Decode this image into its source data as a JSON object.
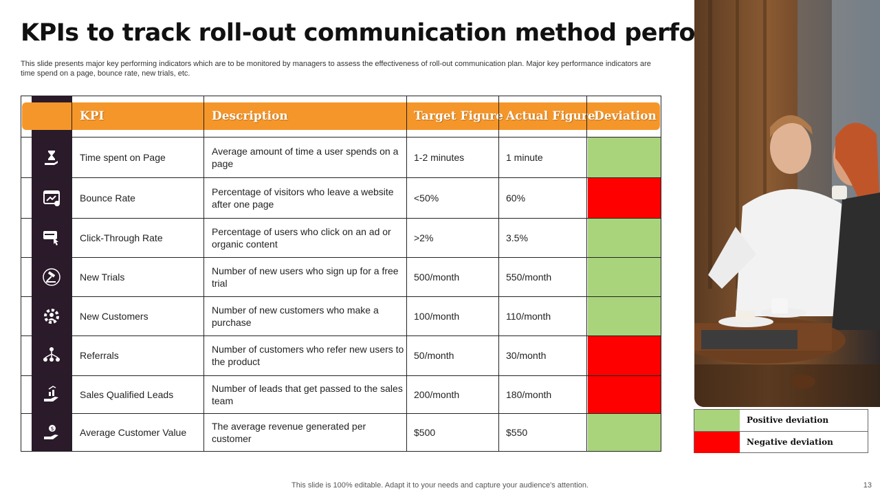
{
  "title": "KPIs to track roll-out communication method performance",
  "subtitle": "This slide presents major key performing indicators which are to be monitored by managers to assess the effectiveness of roll-out communication plan. Major key performance indicators are time spend on a page, bounce rate, new trials, etc.",
  "table": {
    "headers": {
      "kpi": "KPI",
      "description": "Description",
      "target": "Target Figure",
      "actual": "Actual Figure",
      "deviation": "Deviation"
    },
    "rows": [
      {
        "kpi": "Time spent on Page",
        "description": "Average  amount of time a user spends on a page",
        "target": "1-2 minutes",
        "actual": "1 minute",
        "deviation": "positive",
        "icon": "hourglass-hand-icon"
      },
      {
        "kpi": "Bounce Rate",
        "description": "Percentage of visitors who leave a website after one page",
        "target": "<50%",
        "actual": "60%",
        "deviation": "negative",
        "icon": "browser-chart-icon"
      },
      {
        "kpi": "Click-Through Rate",
        "description": "Percentage of users who click on an ad or organic content",
        "target": ">2%",
        "actual": "3.5%",
        "deviation": "positive",
        "icon": "click-card-icon"
      },
      {
        "kpi": "New Trials",
        "description": "Number of new users who sign up for a free trial",
        "target": "500/month",
        "actual": "550/month",
        "deviation": "positive",
        "icon": "gavel-icon"
      },
      {
        "kpi": "New Customers",
        "description": "Number of new customers who make a purchase",
        "target": "100/month",
        "actual": "110/month",
        "deviation": "positive",
        "icon": "gear-users-icon"
      },
      {
        "kpi": "Referrals",
        "description": "Number of customers who refer new users to the product",
        "target": "50/month",
        "actual": "30/month",
        "deviation": "negative",
        "icon": "network-users-icon"
      },
      {
        "kpi": "Sales Qualified Leads",
        "description": "Number of leads that get passed to the sales team",
        "target": "200/month",
        "actual": "180/month",
        "deviation": "negative",
        "icon": "hand-growth-icon"
      },
      {
        "kpi": "Average  Customer Value",
        "description": "The average revenue generated per customer",
        "target": "$500",
        "actual": "$550",
        "deviation": "positive",
        "icon": "hand-dollar-icon"
      }
    ]
  },
  "legend": {
    "positive": "Positive deviation",
    "negative": "Negative deviation"
  },
  "colors": {
    "positive": "#a9d47c",
    "negative": "#ff0000",
    "header": "#f5962a",
    "icon_column": "#2a1a2a"
  },
  "footer": "This slide is 100% editable. Adapt it to your needs and capture your audience's attention.",
  "page_number": "13"
}
